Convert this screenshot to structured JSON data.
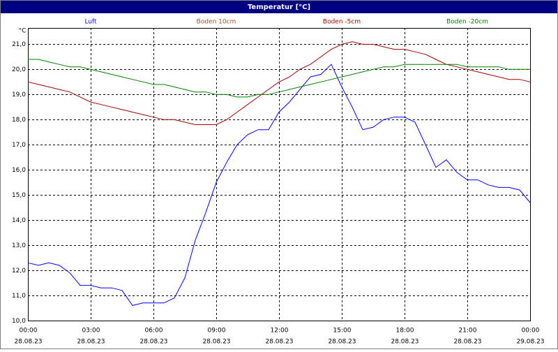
{
  "chart_data": {
    "type": "line",
    "title": "Temperatur [°C]",
    "y_label": "°C",
    "x": [
      0,
      0.5,
      1,
      1.5,
      2,
      2.5,
      3,
      3.5,
      4,
      4.5,
      5,
      5.5,
      6,
      6.5,
      7,
      7.5,
      8,
      8.5,
      9,
      9.5,
      10,
      10.5,
      11,
      11.5,
      12,
      12.5,
      13,
      13.5,
      14,
      14.5,
      15,
      15.5,
      16,
      16.5,
      17,
      17.5,
      18,
      18.5,
      19,
      19.5,
      20,
      20.5,
      21,
      21.5,
      22,
      22.5,
      23,
      23.5,
      24
    ],
    "series": [
      {
        "name": "Luft",
        "color": "#0000ff",
        "values": [
          12.3,
          12.2,
          12.3,
          12.2,
          11.9,
          11.4,
          11.4,
          11.3,
          11.3,
          11.2,
          10.6,
          10.7,
          10.7,
          10.7,
          10.9,
          11.7,
          13.2,
          14.3,
          15.5,
          16.3,
          17.0,
          17.4,
          17.6,
          17.6,
          18.3,
          18.7,
          19.2,
          19.7,
          19.8,
          20.2,
          19.3,
          18.5,
          17.6,
          17.7,
          18.0,
          18.1,
          18.1,
          17.9,
          17.0,
          16.1,
          16.4,
          15.9,
          15.6,
          15.6,
          15.4,
          15.3,
          15.3,
          15.2,
          14.7
        ]
      },
      {
        "name": "Boden 10cm",
        "color": "#a0522d",
        "values": [
          null,
          null,
          null,
          null,
          null,
          null,
          null,
          null,
          null,
          null,
          null,
          null,
          null,
          null,
          null,
          null,
          null,
          null,
          null,
          null,
          null,
          null,
          null,
          null,
          null,
          null,
          null,
          null,
          null,
          null,
          null,
          null,
          null,
          null,
          null,
          null,
          null,
          null,
          null,
          null,
          null,
          null,
          null,
          null,
          null,
          null,
          null,
          null,
          null
        ]
      },
      {
        "name": "Boden -5cm",
        "color": "#a00000",
        "values": [
          19.5,
          19.4,
          19.3,
          19.2,
          19.1,
          18.9,
          18.7,
          18.6,
          18.5,
          18.4,
          18.3,
          18.2,
          18.1,
          18.0,
          18.0,
          17.9,
          17.8,
          17.8,
          17.8,
          18.0,
          18.3,
          18.6,
          18.9,
          19.2,
          19.5,
          19.7,
          20.0,
          20.2,
          20.5,
          20.8,
          21.0,
          21.1,
          21.0,
          21.0,
          20.9,
          20.8,
          20.8,
          20.7,
          20.6,
          20.4,
          20.2,
          20.1,
          20.0,
          19.9,
          19.8,
          19.7,
          19.6,
          19.6,
          19.5
        ]
      },
      {
        "name": "Boden -20cm",
        "color": "#008000",
        "values": [
          20.4,
          20.4,
          20.3,
          20.2,
          20.1,
          20.1,
          20.0,
          19.9,
          19.8,
          19.7,
          19.6,
          19.5,
          19.4,
          19.4,
          19.3,
          19.2,
          19.1,
          19.1,
          19.0,
          19.0,
          18.9,
          18.9,
          19.0,
          19.0,
          19.1,
          19.2,
          19.3,
          19.4,
          19.5,
          19.6,
          19.7,
          19.8,
          19.9,
          20.0,
          20.1,
          20.1,
          20.2,
          20.2,
          20.2,
          20.2,
          20.2,
          20.2,
          20.1,
          20.1,
          20.1,
          20.1,
          20.0,
          20.0,
          20.0
        ]
      }
    ],
    "xlim": [
      0,
      24
    ],
    "xticks": [
      {
        "value": 0,
        "label": "00:00"
      },
      {
        "value": 3,
        "label": "03:00"
      },
      {
        "value": 6,
        "label": "06:00"
      },
      {
        "value": 9,
        "label": "09:00"
      },
      {
        "value": 12,
        "label": "12:00"
      },
      {
        "value": 15,
        "label": "15:00"
      },
      {
        "value": 18,
        "label": "18:00"
      },
      {
        "value": 21,
        "label": "21:00"
      },
      {
        "value": 24,
        "label": "00:00"
      }
    ],
    "xtick_dates": [
      "28.08.23",
      "28.08.23",
      "28.08.23",
      "28.08.23",
      "28.08.23",
      "28.08.23",
      "28.08.23",
      "28.08.23",
      "29.08.23"
    ],
    "ylim": [
      10,
      21.65
    ],
    "yticks": [
      {
        "value": 10,
        "label": "10,0"
      },
      {
        "value": 11,
        "label": "11,0"
      },
      {
        "value": 12,
        "label": "12,0"
      },
      {
        "value": 13,
        "label": "13,0"
      },
      {
        "value": 14,
        "label": "14,0"
      },
      {
        "value": 15,
        "label": "15,0"
      },
      {
        "value": 16,
        "label": "16,0"
      },
      {
        "value": 17,
        "label": "17,0"
      },
      {
        "value": 18,
        "label": "18,0"
      },
      {
        "value": 19,
        "label": "19,0"
      },
      {
        "value": 20,
        "label": "20,0"
      },
      {
        "value": 21,
        "label": "21,0"
      }
    ],
    "grid": true
  }
}
